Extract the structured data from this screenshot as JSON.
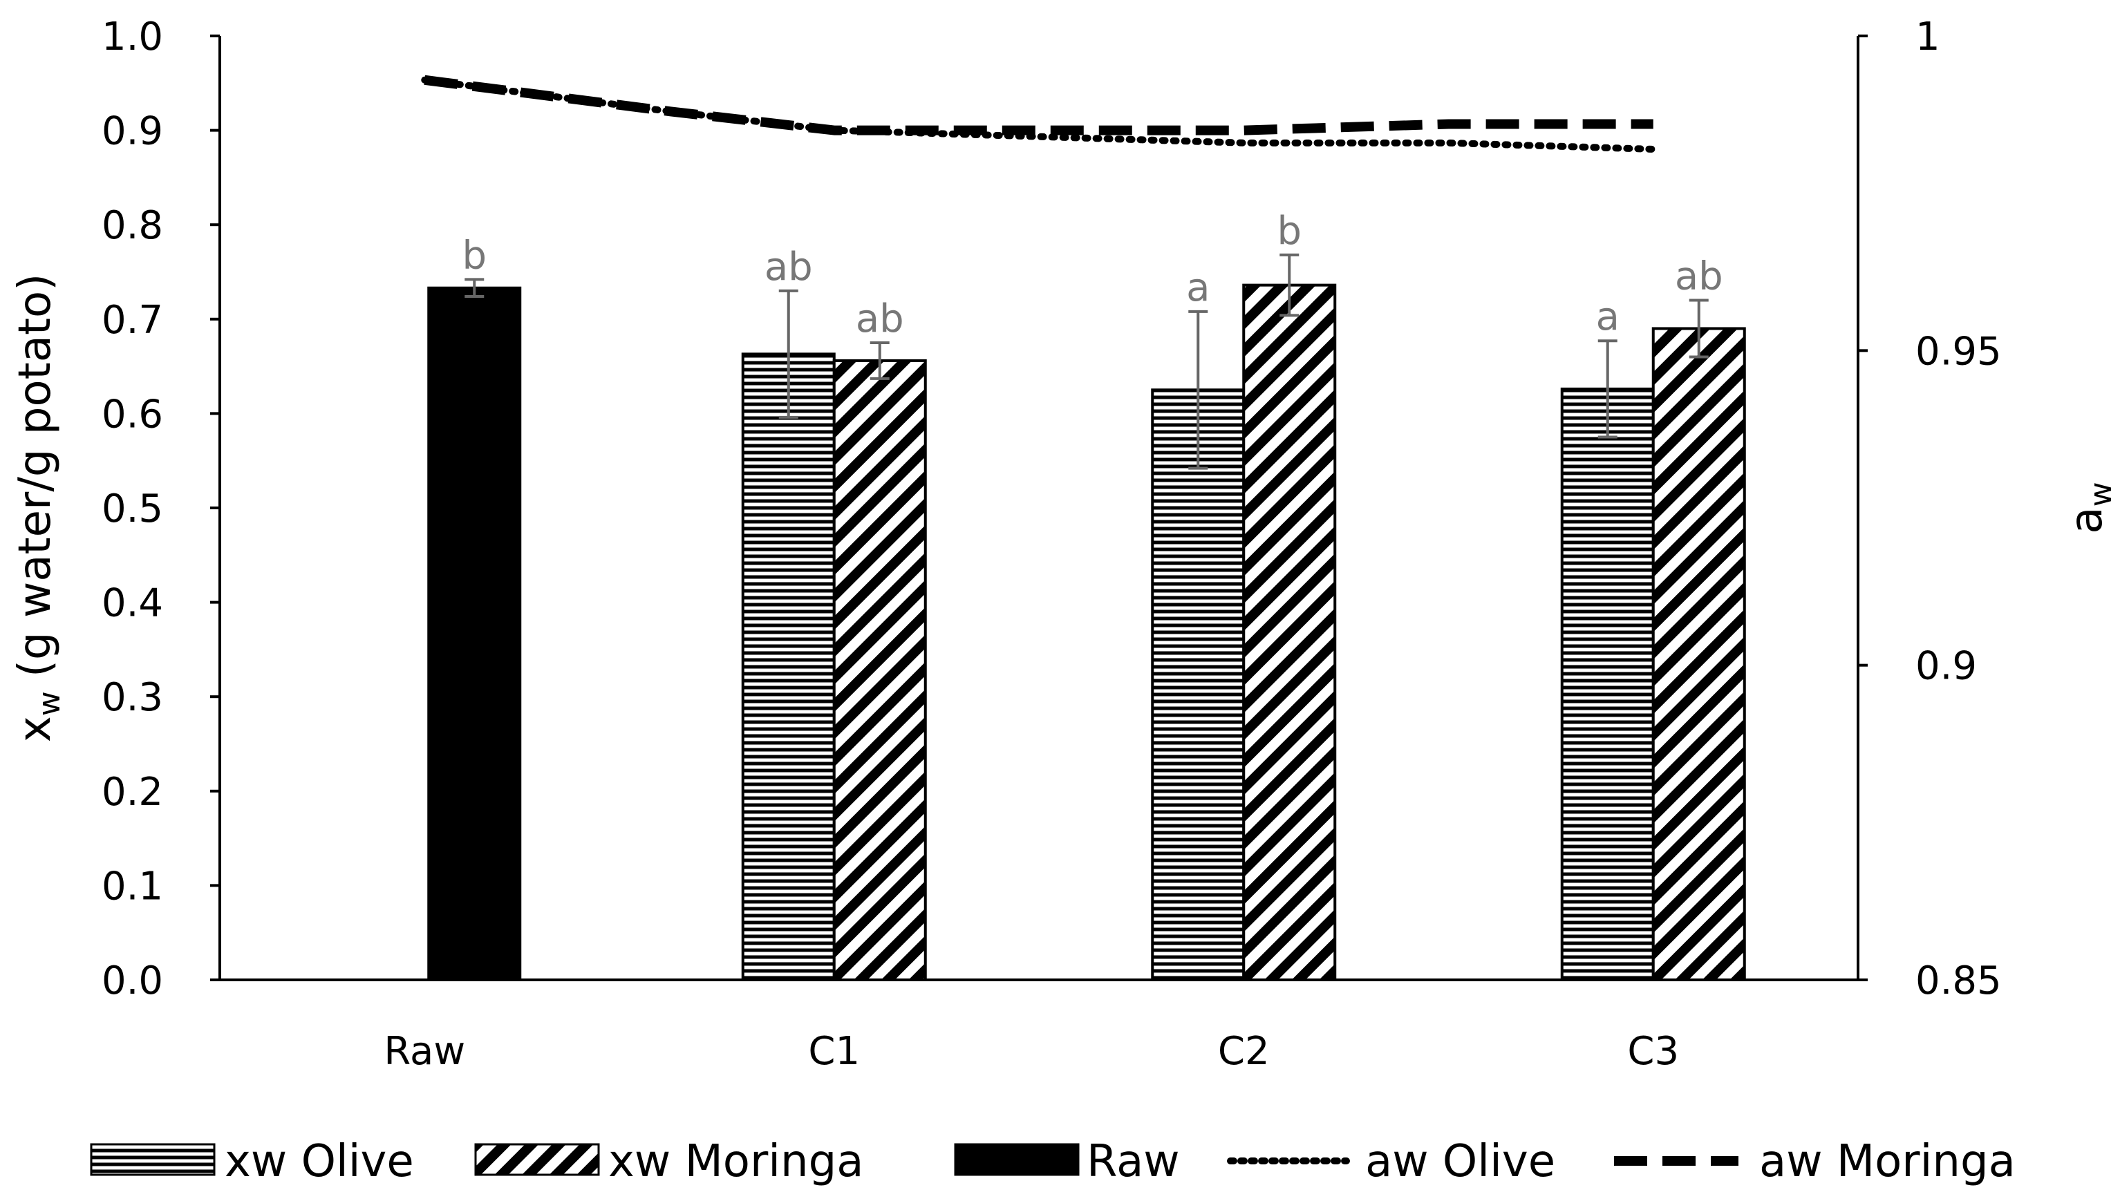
{
  "chart_data": {
    "type": "bar",
    "categories": [
      "Raw",
      "C1",
      "C2",
      "C3"
    ],
    "y_axis": {
      "label_main": "x",
      "label_sub": "w",
      "label_rest": " (g water/g potato)",
      "ylim": [
        0.0,
        1.0
      ],
      "ticks": [
        "0.0",
        "0.1",
        "0.2",
        "0.3",
        "0.4",
        "0.5",
        "0.6",
        "0.7",
        "0.8",
        "0.9",
        "1.0"
      ],
      "tick_values": [
        0.0,
        0.1,
        0.2,
        0.3,
        0.4,
        0.5,
        0.6,
        0.7,
        0.8,
        0.9,
        1.0
      ]
    },
    "y2_axis": {
      "label_main": "a",
      "label_sub": "w",
      "ylim": [
        0.85,
        1.0
      ],
      "ticks": [
        "0.85",
        "0.9",
        "0.95",
        "1"
      ],
      "tick_values": [
        0.85,
        0.9,
        0.95,
        1.0
      ]
    },
    "bar_series": [
      {
        "name": "Raw",
        "pattern": "solid",
        "values": [
          0.733,
          null,
          null,
          null
        ],
        "errors": [
          0.009,
          null,
          null,
          null
        ],
        "sig": [
          "b",
          null,
          null,
          null
        ]
      },
      {
        "name": "xw Olive",
        "pattern": "horizontal",
        "values": [
          null,
          0.663,
          0.625,
          0.626
        ],
        "errors": [
          null,
          0.067,
          0.083,
          0.051
        ],
        "sig": [
          null,
          "ab",
          "a",
          "a"
        ]
      },
      {
        "name": "xw Moringa",
        "pattern": "diagonal",
        "values": [
          null,
          0.656,
          0.736,
          0.69
        ],
        "errors": [
          null,
          0.019,
          0.032,
          0.03
        ],
        "sig": [
          null,
          "ab",
          "b",
          "ab"
        ]
      }
    ],
    "line_series": [
      {
        "name": "aw Olive",
        "style": "dotted",
        "x": [
          0.0,
          0.6,
          1.0,
          1.5,
          2.0,
          2.5,
          3.0
        ],
        "values": [
          0.993,
          0.988,
          0.985,
          0.984,
          0.983,
          0.983,
          0.982
        ]
      },
      {
        "name": "aw Moringa",
        "style": "dashed",
        "x": [
          0.0,
          0.6,
          1.0,
          1.5,
          2.0,
          2.5,
          3.0
        ],
        "values": [
          0.993,
          0.988,
          0.985,
          0.985,
          0.985,
          0.986,
          0.986
        ]
      }
    ],
    "legend": [
      "xw Olive",
      "xw Moringa",
      "Raw",
      "aw Olive",
      "aw Moringa"
    ],
    "legend_position": "bottom",
    "grid": false
  }
}
